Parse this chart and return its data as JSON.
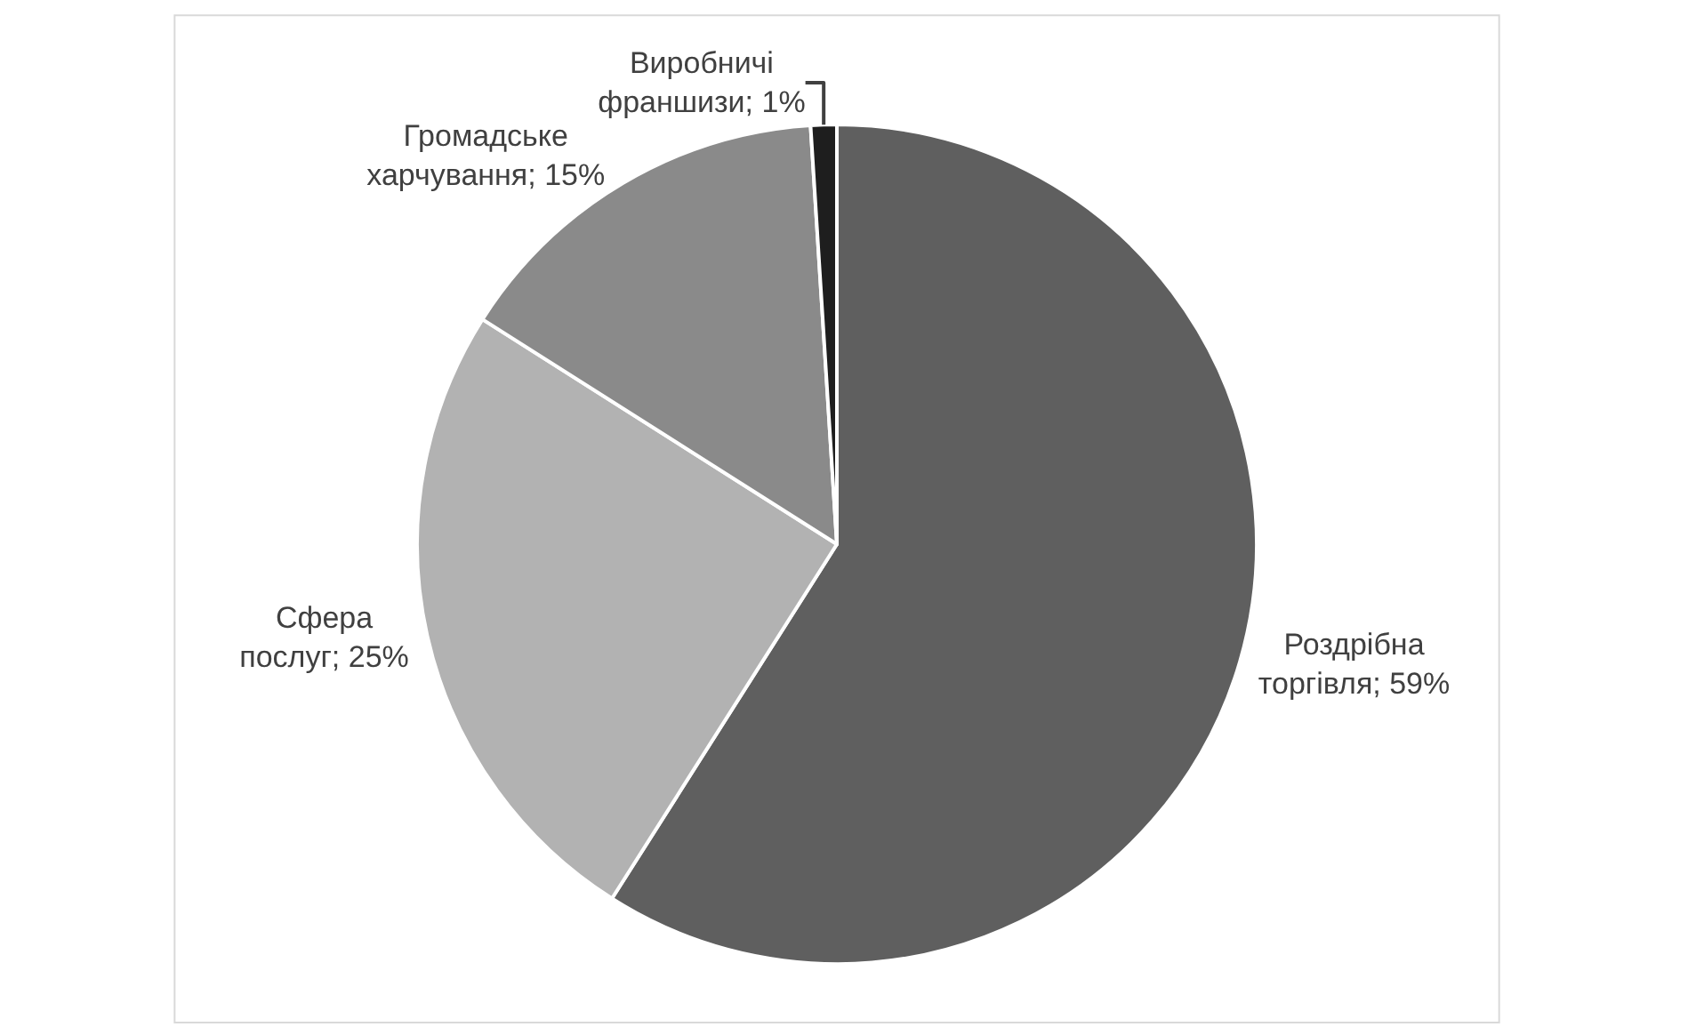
{
  "chart_data": {
    "type": "pie",
    "categories": [
      "Роздрібна торгівля",
      "Сфера послуг",
      "Громадське харчування",
      "Виробничі франшизи"
    ],
    "values": [
      59,
      25,
      15,
      1
    ],
    "value_labels": [
      "59%",
      "25%",
      "15%",
      "1%"
    ],
    "colors": [
      "#5f5f5f",
      "#b2b2b2",
      "#8a8a8a",
      "#1e1e1e"
    ],
    "legend": false
  }
}
